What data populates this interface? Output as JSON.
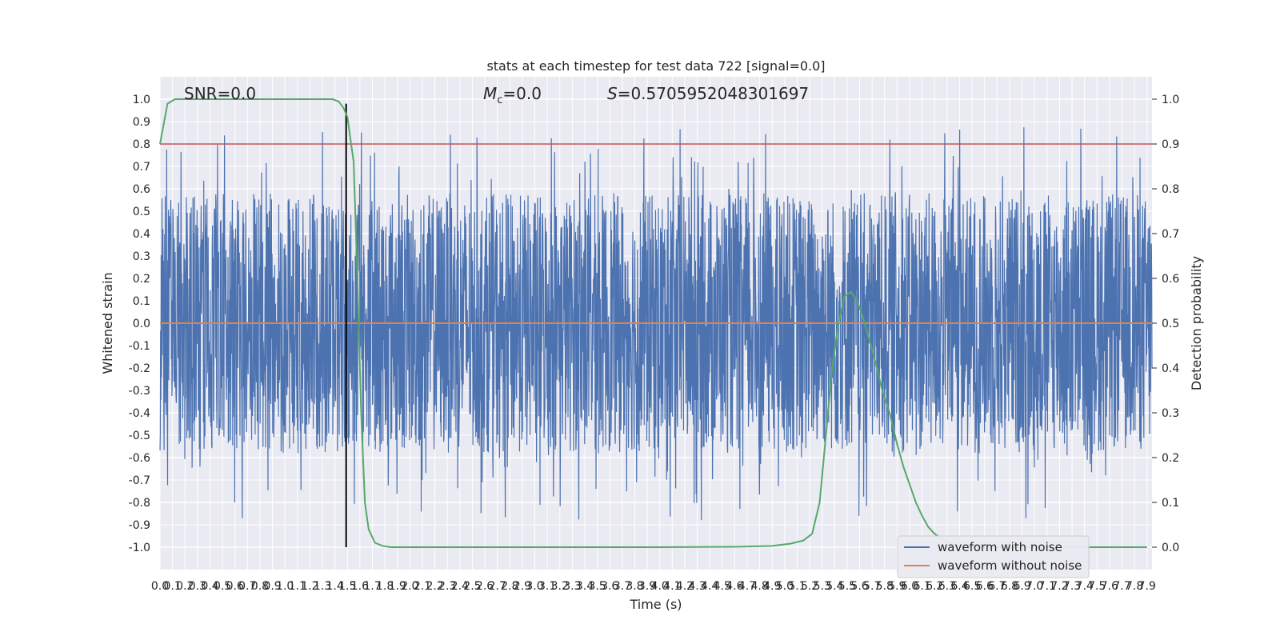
{
  "chart_data": {
    "type": "line",
    "title": "stats at each timestep for test data 722 [signal=0.0]",
    "xlabel": "Time (s)",
    "ylabel": "Whitened strain",
    "y2label": "Detection probability",
    "xlim": [
      0.0,
      7.94
    ],
    "ylim": [
      -1.1,
      1.1
    ],
    "y2lim": [
      -0.05,
      1.05
    ],
    "grid": true,
    "legend_position": "lower-right",
    "annotations": [
      {
        "name": "snr",
        "text": "SNR=0.0"
      },
      {
        "name": "mc",
        "text_italic": "M",
        "subscript": "c",
        "text": "=0.0"
      },
      {
        "name": "s",
        "text_italic": "S",
        "text": "=0.5705952048301697"
      }
    ],
    "x_ticks": [
      "0.0",
      "0.1",
      "0.2",
      "0.3",
      "0.4",
      "0.5",
      "0.6",
      "0.7",
      "0.8",
      "0.9",
      "1.0",
      "1.1",
      "1.2",
      "1.3",
      "1.4",
      "1.5",
      "1.6",
      "1.7",
      "1.8",
      "1.9",
      "2.0",
      "2.1",
      "2.2",
      "2.3",
      "2.4",
      "2.5",
      "2.6",
      "2.7",
      "2.8",
      "2.9",
      "3.0",
      "3.1",
      "3.2",
      "3.3",
      "3.4",
      "3.5",
      "3.6",
      "3.7",
      "3.8",
      "3.9",
      "4.0",
      "4.1",
      "4.2",
      "4.3",
      "4.4",
      "4.5",
      "4.6",
      "4.7",
      "4.8",
      "4.9",
      "5.0",
      "5.1",
      "5.2",
      "5.3",
      "5.4",
      "5.5",
      "5.6",
      "5.7",
      "5.8",
      "5.9",
      "6.0",
      "6.1",
      "6.2",
      "6.3",
      "6.4",
      "6.5",
      "6.6",
      "6.7",
      "6.8",
      "6.9",
      "7.0",
      "7.1",
      "7.2",
      "7.3",
      "7.4",
      "7.5",
      "7.6",
      "7.7",
      "7.8",
      "7.9"
    ],
    "y_ticks": [
      "1.0",
      "0.9",
      "0.8",
      "0.7",
      "0.6",
      "0.5",
      "0.4",
      "0.3",
      "0.2",
      "0.1",
      "0.0",
      "-0.1",
      "-0.2",
      "-0.3",
      "-0.4",
      "-0.5",
      "-0.6",
      "-0.7",
      "-0.8",
      "-0.9",
      "-1.0"
    ],
    "y2_ticks": [
      "1.0",
      "0.9",
      "0.8",
      "0.7",
      "0.6",
      "0.5",
      "0.4",
      "0.3",
      "0.2",
      "0.1",
      "0.0"
    ],
    "threshold": {
      "axis": "y2",
      "value": 0.9,
      "color": "#c44e52"
    },
    "marker_line": {
      "x": 1.49,
      "y_from": -1.0,
      "y_to": 0.98,
      "color": "#000000"
    },
    "series": [
      {
        "name": "waveform with noise",
        "axis": "y",
        "color": "#4c72b0",
        "peak_envelope": 0.58,
        "max": 0.97,
        "min": -1.0
      },
      {
        "name": "waveform without noise",
        "axis": "y",
        "color": "#dd8452",
        "constant": 0.0
      },
      {
        "axis": "y2",
        "color": "#55a868",
        "x": [
          0.0,
          0.06,
          0.12,
          0.2,
          0.3,
          0.5,
          0.8,
          1.0,
          1.2,
          1.3,
          1.38,
          1.43,
          1.47,
          1.5,
          1.55,
          1.58,
          1.61,
          1.64,
          1.67,
          1.72,
          1.78,
          1.85,
          1.95,
          2.2,
          3.0,
          4.0,
          4.6,
          4.9,
          5.05,
          5.15,
          5.22,
          5.28,
          5.33,
          5.38,
          5.43,
          5.48,
          5.53,
          5.58,
          5.63,
          5.68,
          5.73,
          5.78,
          5.84,
          5.9,
          5.95,
          6.0,
          6.05,
          6.1,
          6.15,
          6.2,
          6.25,
          6.3,
          6.38,
          6.45,
          6.6,
          7.0,
          7.5,
          7.9
        ],
        "values": [
          0.9,
          0.99,
          1.0,
          1.0,
          1.0,
          1.0,
          1.0,
          1.0,
          1.0,
          1.0,
          1.0,
          0.995,
          0.98,
          0.96,
          0.86,
          0.6,
          0.3,
          0.1,
          0.04,
          0.01,
          0.003,
          0.0,
          0.0,
          0.0,
          0.0,
          0.0,
          0.001,
          0.003,
          0.008,
          0.015,
          0.03,
          0.1,
          0.25,
          0.4,
          0.5,
          0.56,
          0.57,
          0.55,
          0.51,
          0.46,
          0.41,
          0.35,
          0.3,
          0.23,
          0.18,
          0.14,
          0.1,
          0.07,
          0.045,
          0.03,
          0.02,
          0.01,
          0.005,
          0.002,
          0.0,
          0.0,
          0.0,
          0.0
        ]
      }
    ]
  }
}
